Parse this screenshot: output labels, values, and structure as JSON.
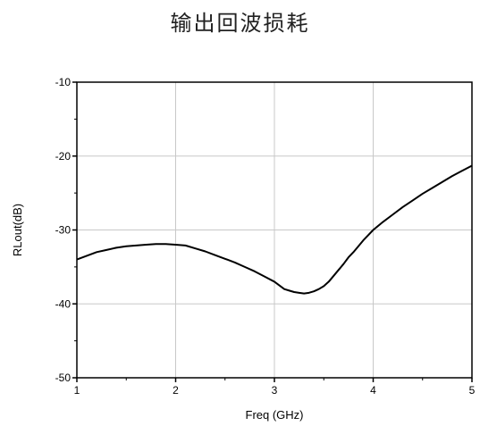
{
  "chart_data": {
    "type": "line",
    "title": "输出回波损耗",
    "xlabel": "Freq (GHz)",
    "ylabel": "RLout(dB)",
    "xlim": [
      1,
      5
    ],
    "ylim": [
      -50,
      -10
    ],
    "xticks": [
      1,
      2,
      3,
      4,
      5
    ],
    "yticks": [
      -50,
      -40,
      -30,
      -20,
      -10
    ],
    "grid": true,
    "colors": {
      "line": "#000000",
      "grid": "#c8c8c8"
    },
    "series": [
      {
        "x": [
          1.0,
          1.1,
          1.2,
          1.3,
          1.4,
          1.5,
          1.6,
          1.7,
          1.8,
          1.9,
          2.0,
          2.1,
          2.2,
          2.3,
          2.4,
          2.5,
          2.6,
          2.7,
          2.8,
          2.9,
          3.0,
          3.05,
          3.1,
          3.15,
          3.2,
          3.25,
          3.3,
          3.35,
          3.4,
          3.45,
          3.5,
          3.55,
          3.6,
          3.65,
          3.7,
          3.75,
          3.8,
          3.85,
          3.9,
          3.95,
          4.0,
          4.1,
          4.2,
          4.3,
          4.4,
          4.5,
          4.6,
          4.7,
          4.8,
          4.9,
          5.0
        ],
        "y": [
          -34.0,
          -33.5,
          -33.0,
          -32.7,
          -32.4,
          -32.2,
          -32.1,
          -32.0,
          -31.9,
          -31.9,
          -32.0,
          -32.1,
          -32.5,
          -32.9,
          -33.4,
          -33.9,
          -34.4,
          -35.0,
          -35.6,
          -36.3,
          -37.0,
          -37.5,
          -38.0,
          -38.2,
          -38.4,
          -38.5,
          -38.6,
          -38.5,
          -38.3,
          -38.0,
          -37.6,
          -37.0,
          -36.2,
          -35.4,
          -34.6,
          -33.7,
          -33.0,
          -32.2,
          -31.4,
          -30.7,
          -30.0,
          -28.9,
          -27.9,
          -26.9,
          -26.0,
          -25.1,
          -24.3,
          -23.5,
          -22.7,
          -22.0,
          -21.3
        ]
      }
    ]
  }
}
